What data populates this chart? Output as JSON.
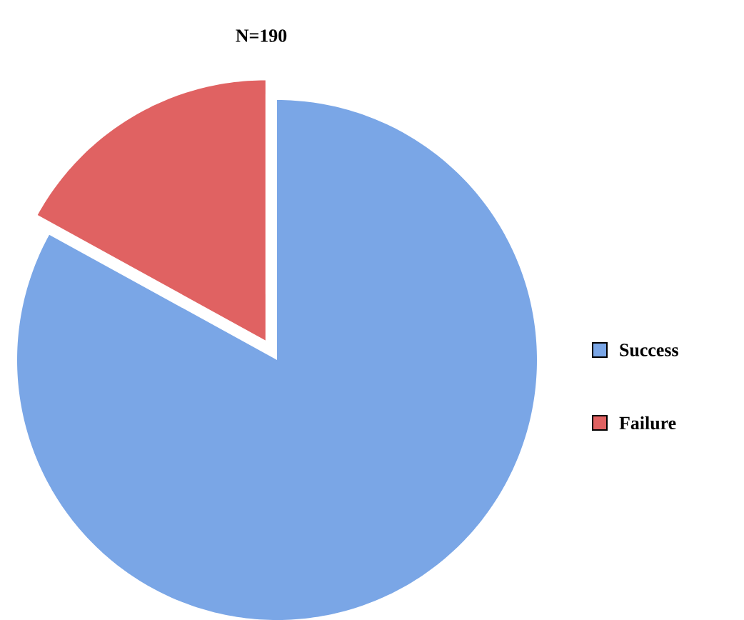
{
  "chart_data": {
    "type": "pie",
    "title": "N=190",
    "categories": [
      "Success",
      "Failure"
    ],
    "values": [
      83,
      17
    ],
    "colors": [
      "#7aa6e6",
      "#e06262"
    ],
    "legend": "right"
  }
}
